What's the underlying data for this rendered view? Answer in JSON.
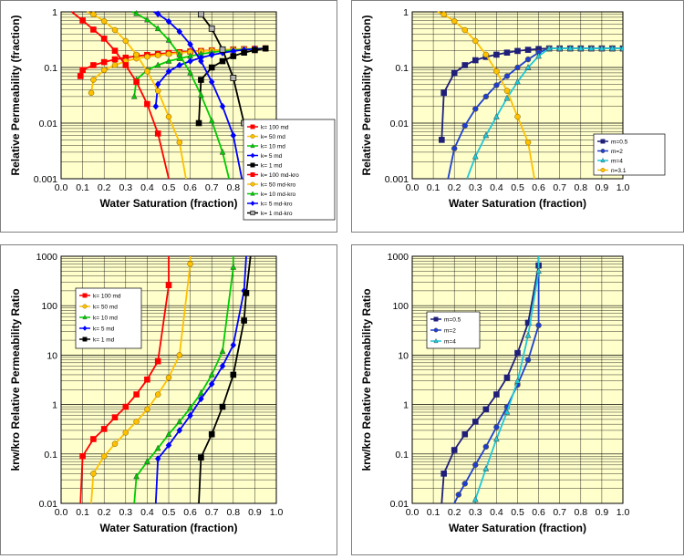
{
  "colors": {
    "plot_bg": "#ffffcc",
    "red": "#ff0000",
    "orange": "#ffc000",
    "green": "#00cc00",
    "blue": "#0000ff",
    "black": "#000000",
    "navy": "#1f1f7a",
    "dkblue": "#1c3fd0",
    "cyan": "#1ec8d8"
  },
  "chart_data": [
    {
      "type": "line",
      "xlabel": "Water Saturation (fraction)",
      "ylabel": "Relative Permeability (fraction)",
      "xlim": [
        0,
        1
      ],
      "ylim": [
        0.001,
        1
      ],
      "yscale": "log",
      "grid": true,
      "legend": "right",
      "xticks": [
        "0.0",
        "0.1",
        "0.2",
        "0.3",
        "0.4",
        "0.5",
        "0.6",
        "0.7",
        "0.8",
        "0.9",
        "1.0"
      ],
      "yticks": [
        "0.001",
        "0.01",
        "0.1",
        "1"
      ],
      "series": [
        {
          "name": "k= 100 md",
          "color": "red",
          "marker": "s",
          "x": [
            0.09,
            0.1,
            0.15,
            0.2,
            0.25,
            0.3,
            0.35,
            0.4,
            0.45,
            0.5,
            0.55,
            0.6,
            0.65,
            0.7,
            0.75,
            0.8,
            0.85,
            0.9,
            0.95
          ],
          "y": [
            0.07,
            0.09,
            0.11,
            0.125,
            0.14,
            0.15,
            0.16,
            0.168,
            0.175,
            0.182,
            0.188,
            0.194,
            0.198,
            0.203,
            0.207,
            0.211,
            0.214,
            0.217,
            0.22
          ]
        },
        {
          "name": "k= 50 md",
          "color": "orange",
          "marker": "o",
          "x": [
            0.14,
            0.15,
            0.2,
            0.25,
            0.3,
            0.35,
            0.4,
            0.45,
            0.5,
            0.55,
            0.6,
            0.65,
            0.7,
            0.75,
            0.8,
            0.85,
            0.9,
            0.95
          ],
          "y": [
            0.035,
            0.06,
            0.09,
            0.11,
            0.13,
            0.145,
            0.156,
            0.166,
            0.175,
            0.183,
            0.19,
            0.196,
            0.202,
            0.207,
            0.211,
            0.215,
            0.218,
            0.22
          ]
        },
        {
          "name": "k= 10 md",
          "color": "green",
          "marker": "^",
          "x": [
            0.34,
            0.35,
            0.4,
            0.45,
            0.5,
            0.55,
            0.6,
            0.65,
            0.7,
            0.75,
            0.8,
            0.85,
            0.9,
            0.95
          ],
          "y": [
            0.03,
            0.06,
            0.09,
            0.11,
            0.13,
            0.145,
            0.16,
            0.175,
            0.187,
            0.197,
            0.205,
            0.212,
            0.217,
            0.22
          ]
        },
        {
          "name": "k= 5 md",
          "color": "blue",
          "marker": "d",
          "x": [
            0.44,
            0.45,
            0.5,
            0.55,
            0.6,
            0.65,
            0.7,
            0.75,
            0.8,
            0.85,
            0.9,
            0.95
          ],
          "y": [
            0.02,
            0.05,
            0.085,
            0.11,
            0.13,
            0.15,
            0.168,
            0.183,
            0.197,
            0.208,
            0.216,
            0.22
          ]
        },
        {
          "name": "k= 1 md",
          "color": "black",
          "marker": "s",
          "x": [
            0.64,
            0.65,
            0.7,
            0.75,
            0.8,
            0.85,
            0.9,
            0.95
          ],
          "y": [
            0.01,
            0.06,
            0.1,
            0.13,
            0.16,
            0.185,
            0.205,
            0.22
          ]
        },
        {
          "name": "k= 100 md-kro",
          "color": "red",
          "marker": "s",
          "x": [
            0.05,
            0.1,
            0.15,
            0.2,
            0.25,
            0.3,
            0.35,
            0.4,
            0.45,
            0.5
          ],
          "y": [
            1.0,
            0.7,
            0.48,
            0.33,
            0.2,
            0.11,
            0.055,
            0.022,
            0.0065,
            0.001
          ]
        },
        {
          "name": "k= 50 md-kro",
          "color": "orange",
          "marker": "o",
          "x": [
            0.12,
            0.15,
            0.2,
            0.25,
            0.3,
            0.35,
            0.4,
            0.45,
            0.5,
            0.55,
            0.58
          ],
          "y": [
            1.0,
            0.9,
            0.68,
            0.47,
            0.3,
            0.17,
            0.085,
            0.038,
            0.013,
            0.0045,
            0.001
          ]
        },
        {
          "name": "k= 10 md-kro",
          "color": "green",
          "marker": "^",
          "x": [
            0.33,
            0.35,
            0.4,
            0.45,
            0.5,
            0.55,
            0.6,
            0.65,
            0.7,
            0.75,
            0.78
          ],
          "y": [
            1.0,
            0.93,
            0.72,
            0.5,
            0.31,
            0.17,
            0.08,
            0.032,
            0.011,
            0.003,
            0.001
          ]
        },
        {
          "name": "k= 5 md-kro",
          "color": "blue",
          "marker": "d",
          "x": [
            0.43,
            0.45,
            0.5,
            0.55,
            0.6,
            0.65,
            0.7,
            0.75,
            0.8,
            0.84
          ],
          "y": [
            1.0,
            0.92,
            0.67,
            0.44,
            0.26,
            0.13,
            0.055,
            0.02,
            0.006,
            0.001
          ]
        },
        {
          "name": "k= 1 md-kro",
          "color": "black",
          "marker": "sq-gray",
          "x": [
            0.64,
            0.65,
            0.7,
            0.75,
            0.8,
            0.85,
            0.88
          ],
          "y": [
            1.0,
            0.9,
            0.5,
            0.21,
            0.065,
            0.01,
            0.001
          ]
        }
      ]
    },
    {
      "type": "line",
      "xlabel": "Water Saturation (fraction)",
      "ylabel": "Relative Permeability (fraction)",
      "xlim": [
        0,
        1
      ],
      "ylim": [
        0.001,
        1
      ],
      "yscale": "log",
      "grid": true,
      "legend": "right",
      "xticks": [
        "0.0",
        "0.1",
        "0.2",
        "0.3",
        "0.4",
        "0.5",
        "0.6",
        "0.7",
        "0.8",
        "0.9",
        "1.0"
      ],
      "yticks": [
        "0.001",
        "0.01",
        "0.1",
        "1"
      ],
      "series": [
        {
          "name": "m=0.5",
          "color": "navy",
          "marker": "s",
          "x": [
            0.14,
            0.15,
            0.2,
            0.25,
            0.3,
            0.35,
            0.4,
            0.45,
            0.5,
            0.55,
            0.6,
            0.65,
            0.7,
            0.75,
            0.8,
            0.85,
            0.9,
            0.95,
            1.0
          ],
          "y": [
            0.005,
            0.035,
            0.08,
            0.11,
            0.135,
            0.155,
            0.17,
            0.185,
            0.198,
            0.208,
            0.215,
            0.22,
            0.22,
            0.22,
            0.22,
            0.22,
            0.22,
            0.22,
            0.22
          ]
        },
        {
          "name": "m=2",
          "color": "dkblue",
          "marker": "o",
          "x": [
            0.17,
            0.2,
            0.25,
            0.3,
            0.35,
            0.4,
            0.45,
            0.5,
            0.55,
            0.6,
            0.65,
            0.7,
            0.75,
            0.8,
            0.85,
            0.9,
            0.95,
            1.0
          ],
          "y": [
            0.001,
            0.0035,
            0.009,
            0.018,
            0.03,
            0.048,
            0.07,
            0.1,
            0.14,
            0.185,
            0.22,
            0.22,
            0.22,
            0.22,
            0.22,
            0.22,
            0.22,
            0.22
          ]
        },
        {
          "name": "m=4",
          "color": "cyan",
          "marker": "^",
          "x": [
            0.26,
            0.3,
            0.35,
            0.4,
            0.45,
            0.5,
            0.55,
            0.6,
            0.65,
            0.7,
            0.75,
            0.8,
            0.85,
            0.9,
            0.95,
            1.0
          ],
          "y": [
            0.001,
            0.0025,
            0.006,
            0.013,
            0.028,
            0.055,
            0.1,
            0.16,
            0.22,
            0.22,
            0.22,
            0.22,
            0.22,
            0.22,
            0.22,
            0.22
          ]
        },
        {
          "name": "n=3.1",
          "color": "orange",
          "marker": "o",
          "x": [
            0.12,
            0.15,
            0.2,
            0.25,
            0.3,
            0.35,
            0.4,
            0.45,
            0.5,
            0.55,
            0.58
          ],
          "y": [
            1.0,
            0.9,
            0.68,
            0.47,
            0.3,
            0.17,
            0.085,
            0.038,
            0.013,
            0.0045,
            0.001
          ]
        }
      ]
    },
    {
      "type": "line",
      "xlabel": "Water Saturation (fraction)",
      "ylabel": "krw/kro Relative Permeability Ratio",
      "xlim": [
        0,
        1
      ],
      "ylim": [
        0.01,
        1000
      ],
      "yscale": "log",
      "grid": true,
      "legend": "top-left",
      "xticks": [
        "0.0",
        "0.1",
        "0.2",
        "0.3",
        "0.4",
        "0.5",
        "0.6",
        "0.7",
        "0.8",
        "0.9",
        "1.0"
      ],
      "yticks": [
        "0.01",
        "0.1",
        "1",
        "10",
        "100",
        "1000"
      ],
      "series": [
        {
          "name": "k= 100 md",
          "color": "red",
          "marker": "s",
          "x": [
            0.09,
            0.1,
            0.15,
            0.2,
            0.25,
            0.3,
            0.35,
            0.4,
            0.45,
            0.5,
            0.5
          ],
          "y": [
            0.01,
            0.09,
            0.2,
            0.32,
            0.55,
            0.9,
            1.6,
            3.2,
            7.5,
            260,
            1000
          ]
        },
        {
          "name": "k= 50 md",
          "color": "orange",
          "marker": "o",
          "x": [
            0.14,
            0.15,
            0.2,
            0.25,
            0.3,
            0.35,
            0.4,
            0.45,
            0.5,
            0.55,
            0.6,
            0.6
          ],
          "y": [
            0.01,
            0.04,
            0.09,
            0.16,
            0.27,
            0.45,
            0.8,
            1.6,
            3.5,
            10,
            700,
            1000
          ]
        },
        {
          "name": "k= 10 md",
          "color": "green",
          "marker": "^",
          "x": [
            0.34,
            0.35,
            0.4,
            0.45,
            0.5,
            0.55,
            0.6,
            0.65,
            0.7,
            0.75,
            0.8,
            0.8
          ],
          "y": [
            0.01,
            0.035,
            0.07,
            0.13,
            0.25,
            0.45,
            0.85,
            1.7,
            4.0,
            12,
            600,
            1000
          ]
        },
        {
          "name": "k= 5 md",
          "color": "blue",
          "marker": "d",
          "x": [
            0.44,
            0.45,
            0.5,
            0.55,
            0.6,
            0.65,
            0.7,
            0.75,
            0.8,
            0.85,
            0.86
          ],
          "y": [
            0.01,
            0.08,
            0.15,
            0.3,
            0.6,
            1.3,
            2.6,
            6.0,
            16,
            200,
            1000
          ]
        },
        {
          "name": "k= 1 md",
          "color": "black",
          "marker": "s",
          "x": [
            0.64,
            0.65,
            0.7,
            0.75,
            0.8,
            0.85,
            0.86,
            0.88
          ],
          "y": [
            0.01,
            0.085,
            0.25,
            0.9,
            4.0,
            50,
            180,
            1000
          ]
        }
      ]
    },
    {
      "type": "line",
      "xlabel": "Water Saturation (fraction)",
      "ylabel": "krw/kro Relative Permeability Ratio",
      "xlim": [
        0,
        1
      ],
      "ylim": [
        0.01,
        1000
      ],
      "yscale": "log",
      "grid": true,
      "legend": "top-left",
      "xticks": [
        "0.0",
        "0.1",
        "0.2",
        "0.3",
        "0.4",
        "0.5",
        "0.6",
        "0.7",
        "0.8",
        "0.9",
        "1.0"
      ],
      "yticks": [
        "0.01",
        "0.1",
        "1",
        "10",
        "100",
        "1000"
      ],
      "series": [
        {
          "name": "m=0.5",
          "color": "navy",
          "marker": "s",
          "x": [
            0.14,
            0.15,
            0.2,
            0.25,
            0.3,
            0.35,
            0.4,
            0.45,
            0.5,
            0.55,
            0.6,
            0.6
          ],
          "y": [
            0.01,
            0.04,
            0.12,
            0.25,
            0.45,
            0.8,
            1.6,
            3.5,
            11,
            45,
            650,
            1000
          ]
        },
        {
          "name": "m=2",
          "color": "dkblue",
          "marker": "o",
          "x": [
            0.2,
            0.22,
            0.25,
            0.3,
            0.35,
            0.4,
            0.45,
            0.5,
            0.55,
            0.6,
            0.6
          ],
          "y": [
            0.01,
            0.015,
            0.025,
            0.06,
            0.14,
            0.35,
            0.9,
            2.5,
            8,
            40,
            1000
          ]
        },
        {
          "name": "m=4",
          "color": "cyan",
          "marker": "^",
          "x": [
            0.29,
            0.3,
            0.35,
            0.4,
            0.45,
            0.5,
            0.55,
            0.6,
            0.6
          ],
          "y": [
            0.01,
            0.012,
            0.05,
            0.2,
            0.7,
            3.0,
            25,
            500,
            1000
          ]
        }
      ]
    }
  ]
}
